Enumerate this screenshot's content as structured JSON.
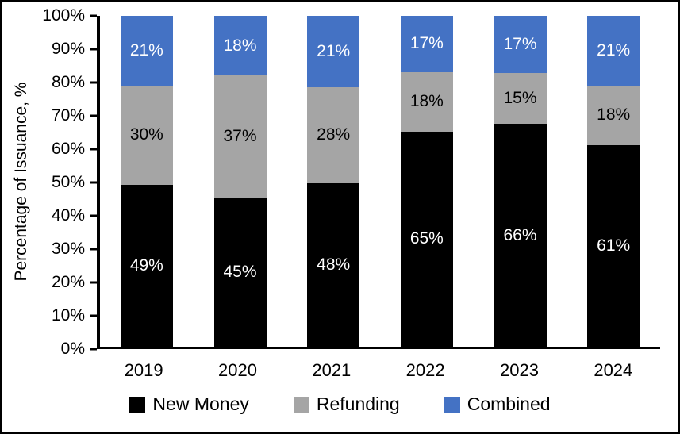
{
  "chart_data": {
    "type": "bar",
    "variant": "stacked-column",
    "title": "",
    "xlabel": "",
    "ylabel": "Percentage of Issuance, %",
    "ylim": [
      0,
      100
    ],
    "ytick_step": 10,
    "ytick_labels": [
      "0%",
      "10%",
      "20%",
      "30%",
      "40%",
      "50%",
      "60%",
      "70%",
      "80%",
      "90%",
      "100%"
    ],
    "categories": [
      "2019",
      "2020",
      "2021",
      "2022",
      "2023",
      "2024"
    ],
    "series": [
      {
        "name": "New Money",
        "color": "#000000",
        "label_color": "#FFFFFF",
        "values": [
          49,
          45,
          48,
          65,
          66,
          61
        ],
        "labels": [
          "49%",
          "45%",
          "48%",
          "65%",
          "66%",
          "61%"
        ]
      },
      {
        "name": "Refunding",
        "color": "#A5A5A5",
        "label_color": "#000000",
        "values": [
          30,
          37,
          28,
          18,
          15,
          18
        ],
        "labels": [
          "30%",
          "37%",
          "28%",
          "18%",
          "15%",
          "18%"
        ]
      },
      {
        "name": "Combined",
        "color": "#4472C4",
        "label_color": "#FFFFFF",
        "values": [
          21,
          18,
          21,
          17,
          17,
          21
        ],
        "labels": [
          "21%",
          "18%",
          "21%",
          "17%",
          "17%",
          "21%"
        ]
      }
    ],
    "legend_position": "bottom",
    "grid": false,
    "axis_color": "#000000",
    "background": "#FFFFFF"
  }
}
